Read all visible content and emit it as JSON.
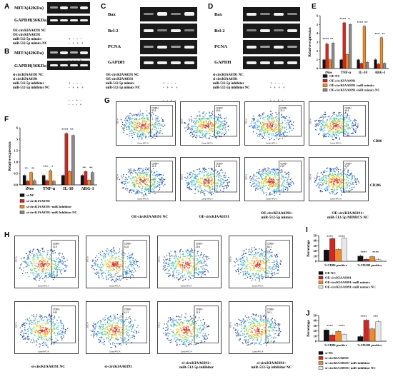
{
  "panels": {
    "A": {
      "letter": "A",
      "labels": [
        "MITA(42KDa)",
        "GAPDH(36KDa)"
      ],
      "rows": [
        "OE-circKIAA0391 NC",
        "OE-circKIAA0391",
        "miR-512-5p mimics",
        "miR-512-5p mimics NC"
      ],
      "signs": [
        "+   -   -   -",
        "-   +   +   +",
        "-   -   +   -",
        "-   -   -   +"
      ]
    },
    "B": {
      "letter": "B",
      "labels": [
        "MITA(42KDa)",
        "GAPDH(36KDa)"
      ],
      "rows": [
        "si-circKIAA0391 NC",
        "si-circKIAA0391",
        "miR-512-5p inhibitor",
        "miR-512-5p inhibitor NC"
      ],
      "signs": [
        "+   -   -   -",
        "-   +   +   +",
        "-   -   +   -",
        "-   -   -   +"
      ]
    },
    "C": {
      "letter": "C",
      "labels": [
        "Bax",
        "Bcl-2",
        "PCNA",
        "GAPDH"
      ],
      "rows": [
        "OE-circKIAA0391 NC",
        "OE-circKIAA0391",
        "miR-512-5p mimics",
        "miR-512-5p mimics NC"
      ],
      "signs": [
        "+   -   -   -",
        "-   +   +   +",
        "-   -   +   -",
        "-   -   -   +"
      ]
    },
    "D": {
      "letter": "D",
      "labels": [
        "Bax",
        "Bcl-2",
        "PCNA",
        "GAPDH"
      ],
      "rows": [
        "si-circKIAA0391 NC",
        "si-circKIAA0391",
        "miR-512-5p inhibitor",
        "miR-512-5p inhibitor NC"
      ],
      "signs": [
        "+   -   -   -",
        "-   +   +   +",
        "-   -   +   -",
        "-   -   -   +"
      ]
    },
    "E": {
      "letter": "E"
    },
    "F": {
      "letter": "F"
    },
    "G": {
      "letter": "G",
      "side_labels": [
        "CD86",
        "CD206"
      ],
      "captions": [
        "OE-circKIAA0391 NC",
        "OE-circKIAA0391",
        "OE-circKIAA0391+\nmiR-512-5p mimics",
        "OE-circKIAA0391+\nmiR-512-5p MIMICS NC"
      ]
    },
    "H": {
      "letter": "H",
      "side_labels": [
        "CD86",
        "CD209"
      ],
      "captions": [
        "si-circKIAA0391 NC",
        "si-circKIAA0391",
        "si-circKIAA0391+\nmiR-512-5p inhibitor",
        "si-circKIAA0391+\nmiR-512-5p inhibitor NC"
      ]
    },
    "I": {
      "letter": "I"
    },
    "J": {
      "letter": "J"
    }
  },
  "chart_data": [
    {
      "id": "E",
      "type": "bar",
      "ylabel": "Relative expression",
      "categories": [
        "iNos",
        "TNF-α",
        "IL-10",
        "ARG-1"
      ],
      "ylim": [
        0,
        6
      ],
      "yticks": [
        "0",
        "1",
        "2",
        "3",
        "4",
        "5",
        "6"
      ],
      "colors": [
        "#111111",
        "#d2261f",
        "#ee8a2a",
        "#8a8a8a"
      ],
      "series": [
        {
          "name": "OE-NC",
          "values": [
            1.0,
            1.0,
            1.0,
            1.0
          ]
        },
        {
          "name": "OE-circKIAA0391",
          "values": [
            2.8,
            5.2,
            0.6,
            0.5
          ]
        },
        {
          "name": "OE-circKIAA0391+miR mimics",
          "values": [
            1.0,
            1.6,
            4.8,
            3.5
          ]
        },
        {
          "name": "OE-circKIAA0391+miR mimics NC",
          "values": [
            2.9,
            5.0,
            0.7,
            0.6
          ]
        }
      ],
      "sig": [
        "****",
        "**",
        "****",
        "*",
        "****",
        "**",
        "***",
        "**"
      ]
    },
    {
      "id": "F",
      "type": "bar",
      "ylabel": "Relative expression",
      "categories": [
        "iNos",
        "TNF-α",
        "IL-10",
        "ARG-1"
      ],
      "ylim": [
        0,
        6
      ],
      "yticks": [
        "0.0",
        "0.5",
        "1.0",
        "1.5",
        "5",
        "6"
      ],
      "colors": [
        "#111111",
        "#d2261f",
        "#ee8a2a",
        "#8a8a8a"
      ],
      "series": [
        {
          "name": "si-NC",
          "values": [
            1.0,
            1.0,
            1.0,
            1.0
          ]
        },
        {
          "name": "si-circKIAA0391",
          "values": [
            0.4,
            0.45,
            5.4,
            1.4
          ]
        },
        {
          "name": "si-circKIAA0391+miR Inhibitor",
          "values": [
            1.3,
            1.5,
            1.4,
            0.5
          ]
        },
        {
          "name": "si-circKIAA0391+miR Inhibitor NC",
          "values": [
            0.45,
            0.4,
            5.2,
            1.3
          ]
        }
      ],
      "sig": [
        "**",
        "**",
        "***",
        "*",
        "****",
        "**",
        "**",
        "**"
      ]
    },
    {
      "id": "I",
      "type": "bar",
      "ylabel": "Percentage",
      "categories": [
        "%CD86 positive",
        "%CD209 positive"
      ],
      "ylim": [
        0,
        50
      ],
      "yticks": [
        "0",
        "10",
        "20",
        "30",
        "40",
        "50"
      ],
      "colors": [
        "#111111",
        "#d2261f",
        "#ee8a2a",
        "#e8e8e8"
      ],
      "series": [
        {
          "name": "OE-NC",
          "values": [
            22,
            10
          ]
        },
        {
          "name": "OE-circKIAA0391",
          "values": [
            44,
            4
          ]
        },
        {
          "name": "OE-circKIAA0391+miR mimics",
          "values": [
            23,
            9
          ]
        },
        {
          "name": "OE-circKIAA0391+miR mimics NC",
          "values": [
            45,
            3
          ]
        }
      ],
      "sig": [
        "****",
        "****",
        "****",
        "****"
      ]
    },
    {
      "id": "J",
      "type": "bar",
      "ylabel": "Percentage",
      "categories": [
        "%CD86 positive",
        "%CD209 positive"
      ],
      "ylim": [
        0,
        50
      ],
      "yticks": [
        "0",
        "10",
        "20",
        "30",
        "40",
        "50"
      ],
      "colors": [
        "#111111",
        "#d2261f",
        "#ee8a2a",
        "#e8e8e8"
      ],
      "series": [
        {
          "name": "si-NC",
          "values": [
            22,
            9
          ]
        },
        {
          "name": "si-circKIAA0391",
          "values": [
            12,
            41
          ]
        },
        {
          "name": "si-circKIAA0391+miR-inhibitor",
          "values": [
            19,
            24
          ]
        },
        {
          "name": "si-circKIAA0391+miR-inhibitor NC",
          "values": [
            13,
            38
          ]
        }
      ],
      "sig": [
        "****",
        "****",
        "****",
        "***"
      ]
    }
  ],
  "flow": {
    "axis_x": "Comp-APC-A",
    "axis_y": "SSC-A",
    "gate_label": "CD86+",
    "G_top_values": [
      "33.6",
      "45.6",
      "31.2",
      "46.4"
    ],
    "G_bottom_values": [
      "10.3",
      "8.32",
      "2.87",
      "5.07"
    ],
    "H_top_values": [
      "22.9",
      "52.8",
      "25.5",
      "58.1"
    ],
    "H_bottom_values": [
      "5.93",
      "41.3",
      "21.9",
      "38.1"
    ]
  }
}
